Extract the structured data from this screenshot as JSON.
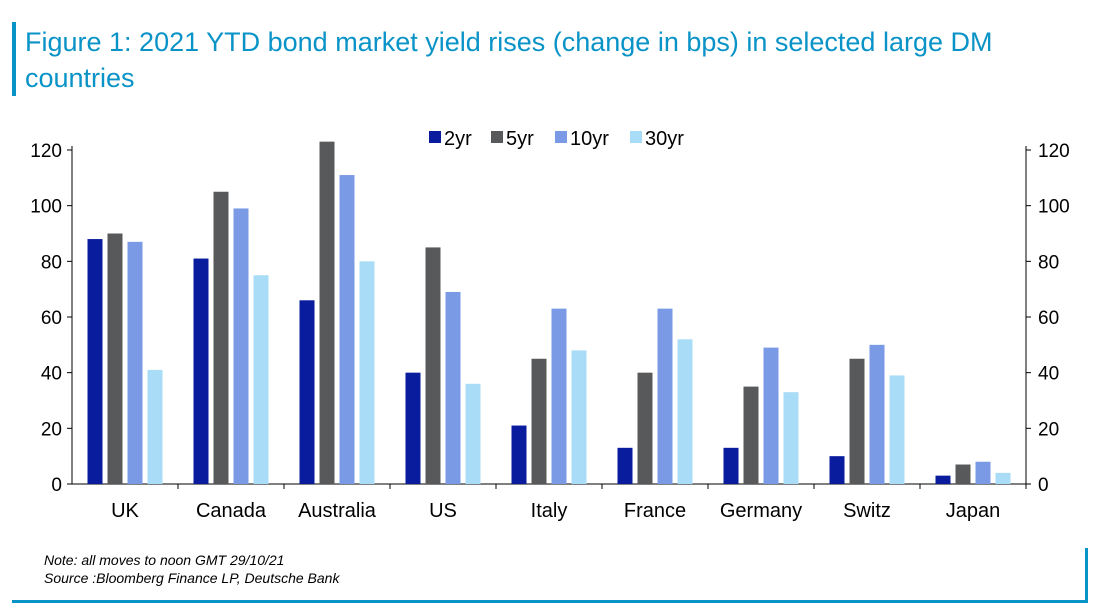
{
  "title": "Figure 1: 2021 YTD bond market yield rises (change in bps) in selected large DM countries",
  "footer": {
    "note": "Note: all moves to noon GMT 29/10/21",
    "source": "Source :Bloomberg Finance LP, Deutsche Bank"
  },
  "colors": {
    "accent": "#0a93c7",
    "series": [
      "#0a1c9e",
      "#58595b",
      "#7b9ae6",
      "#a9dcf6"
    ]
  },
  "chart_data": {
    "type": "bar",
    "title": "",
    "xlabel": "",
    "ylabel": "",
    "ylim": [
      0,
      120
    ],
    "yticks": [
      0,
      20,
      40,
      60,
      80,
      100,
      120
    ],
    "secondary_axis": true,
    "legend_placement": "top-center",
    "grid": false,
    "categories": [
      "UK",
      "Canada",
      "Australia",
      "US",
      "Italy",
      "France",
      "Germany",
      "Switz",
      "Japan"
    ],
    "series": [
      {
        "name": "2yr",
        "values": [
          88,
          81,
          66,
          40,
          21,
          13,
          13,
          10,
          3
        ]
      },
      {
        "name": "5yr",
        "values": [
          90,
          105,
          123,
          85,
          45,
          40,
          35,
          45,
          7
        ]
      },
      {
        "name": "10yr",
        "values": [
          87,
          99,
          111,
          69,
          63,
          63,
          49,
          50,
          8
        ]
      },
      {
        "name": "30yr",
        "values": [
          41,
          75,
          80,
          36,
          48,
          52,
          33,
          39,
          4
        ]
      }
    ]
  }
}
